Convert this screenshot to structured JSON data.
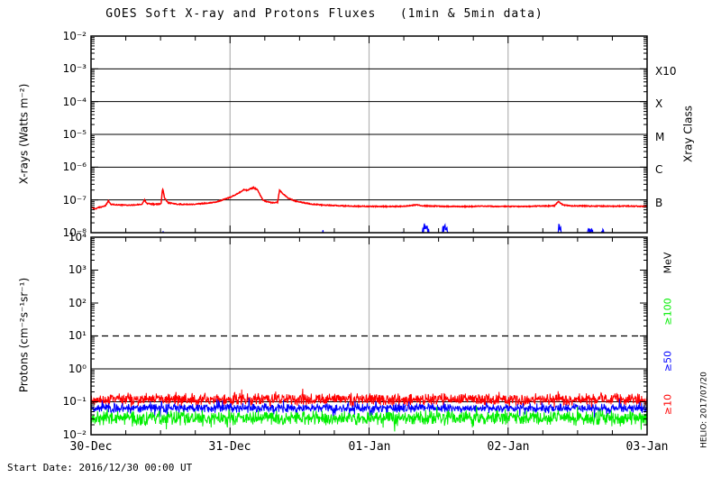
{
  "title": "GOES Soft X-ray and Protons Fluxes   (1min & 5min data)",
  "footer": {
    "start_date": "Start Date: 2016/12/30 00:00 UT"
  },
  "credit": "HELIO: 2017/07/20",
  "chart_data": {
    "type": "line",
    "title": "GOES Soft X-ray and Protons Fluxes   (1min & 5min data)",
    "x_axis": {
      "tick_labels": [
        "30-Dec",
        "31-Dec",
        "01-Jan",
        "02-Jan",
        "03-Jan"
      ],
      "start_label": "Start Date: 2016/12/30 00:00 UT",
      "hours_span": 96,
      "minor_tick_hours": 6,
      "day_gridline_color": "#b4b4b4"
    },
    "xray_panel": {
      "ylabel": "X-rays (Watts m⁻²)",
      "ytick_labels": [
        "10⁻²",
        "10⁻³",
        "10⁻⁴",
        "10⁻⁵",
        "10⁻⁶",
        "10⁻⁷",
        "10⁻⁸"
      ],
      "ylim": [
        1e-08,
        0.01
      ],
      "class_threshold_lines_flux": [
        0.001,
        0.0001,
        1e-05,
        1e-06,
        1e-07
      ],
      "right_class_labels": [
        "X10",
        "X",
        "M",
        "C",
        "B"
      ],
      "right_axis_title": "Xray Class",
      "series": [
        {
          "name": "xray-long-wavelength",
          "color": "#ff0000",
          "keypoints_hour_flux": [
            [
              0,
              6.2e-08
            ],
            [
              0.7,
              5.3e-08
            ],
            [
              1.4,
              5.9e-08
            ],
            [
              2.5,
              6.6e-08
            ],
            [
              3.0,
              9.4e-08
            ],
            [
              3.4,
              7.3e-08
            ],
            [
              5,
              7e-08
            ],
            [
              7,
              6.9e-08
            ],
            [
              8.8,
              7.3e-08
            ],
            [
              9.2,
              1e-07
            ],
            [
              9.7,
              7.8e-08
            ],
            [
              11,
              7.3e-08
            ],
            [
              12.1,
              7.6e-08
            ],
            [
              12.35,
              2.3e-07
            ],
            [
              12.7,
              1.15e-07
            ],
            [
              13.3,
              8.2e-08
            ],
            [
              14.5,
              7.6e-08
            ],
            [
              16,
              7.3e-08
            ],
            [
              18,
              7.4e-08
            ],
            [
              20,
              8e-08
            ],
            [
              21.5,
              8.6e-08
            ],
            [
              22.5,
              9.6e-08
            ],
            [
              23.2,
              1.08e-07
            ],
            [
              24,
              1.2e-07
            ],
            [
              25,
              1.45e-07
            ],
            [
              25.8,
              1.75e-07
            ],
            [
              26.4,
              2.05e-07
            ],
            [
              27,
              1.95e-07
            ],
            [
              27.5,
              2.2e-07
            ],
            [
              28.1,
              2.35e-07
            ],
            [
              28.7,
              2.05e-07
            ],
            [
              29.2,
              1.4e-07
            ],
            [
              29.7,
              9.8e-08
            ],
            [
              30.4,
              8.8e-08
            ],
            [
              31.2,
              8.2e-08
            ],
            [
              32.2,
              8.4e-08
            ],
            [
              32.55,
              2e-07
            ],
            [
              33.1,
              1.55e-07
            ],
            [
              34,
              1.15e-07
            ],
            [
              35,
              9.6e-08
            ],
            [
              36.5,
              8.3e-08
            ],
            [
              38,
              7.5e-08
            ],
            [
              40,
              7e-08
            ],
            [
              43,
              6.6e-08
            ],
            [
              46,
              6.4e-08
            ],
            [
              50,
              6.3e-08
            ],
            [
              54,
              6.4e-08
            ],
            [
              56.3,
              7.1e-08
            ],
            [
              57.2,
              6.6e-08
            ],
            [
              60,
              6.4e-08
            ],
            [
              64,
              6.3e-08
            ],
            [
              68,
              6.4e-08
            ],
            [
              72,
              6.3e-08
            ],
            [
              76,
              6.4e-08
            ],
            [
              80,
              6.6e-08
            ],
            [
              80.7,
              8.9e-08
            ],
            [
              81.5,
              7e-08
            ],
            [
              83,
              6.6e-08
            ],
            [
              86,
              6.5e-08
            ],
            [
              90,
              6.4e-08
            ],
            [
              93,
              6.5e-08
            ],
            [
              96,
              6.3e-08
            ]
          ]
        },
        {
          "name": "xray-short-wavelength",
          "color": "#0000ff",
          "base_flux": 8e-09,
          "bursts_hour_start_end_peakflux": [
            [
              12.3,
              12.6,
              1.05e-08
            ],
            [
              39.9,
              40.2,
              1.1e-08
            ],
            [
              52.7,
              53.3,
              1.05e-08
            ],
            [
              53.6,
              54.0,
              1.15e-08
            ],
            [
              56.9,
              58.6,
              1.9e-08
            ],
            [
              60.0,
              62.0,
              1.7e-08
            ],
            [
              80.3,
              81.4,
              1.8e-08
            ],
            [
              84.9,
              87.4,
              1.35e-08
            ],
            [
              87.9,
              88.9,
              1.2e-08
            ]
          ]
        }
      ]
    },
    "proton_panel": {
      "ylabel": "Protons (cm⁻²s⁻¹sr⁻¹)",
      "ytick_labels": [
        "10⁴",
        "10³",
        "10²",
        "10¹",
        "10⁰",
        "10⁻¹",
        "10⁻²"
      ],
      "ylim": [
        0.01,
        10000.0
      ],
      "dashed_hline_flux": 10,
      "solid_hlines_flux": [
        1,
        0.1
      ],
      "right_axis_title": "MeV",
      "right_threshold_labels": [
        {
          "text": "≥100",
          "color": "#00ee00"
        },
        {
          "text": "≥50",
          "color": "#0000ff"
        },
        {
          "text": "≥10",
          "color": "#ff0000"
        }
      ],
      "series": [
        {
          "name": "protons-ge-10MeV",
          "color": "#ff0000",
          "typical_flux": 0.13,
          "range": [
            0.07,
            0.3
          ],
          "mean_log10": -0.93,
          "sd_log10": 0.13,
          "seed": 11
        },
        {
          "name": "protons-ge-50MeV",
          "color": "#0000ff",
          "typical_flux": 0.065,
          "range": [
            0.04,
            0.12
          ],
          "mean_log10": -1.19,
          "sd_log10": 0.1,
          "seed": 23
        },
        {
          "name": "protons-ge-100MeV",
          "color": "#00ee00",
          "typical_flux": 0.03,
          "range": [
            0.012,
            0.08
          ],
          "mean_log10": -1.49,
          "sd_log10": 0.16,
          "seed": 37
        }
      ]
    }
  }
}
